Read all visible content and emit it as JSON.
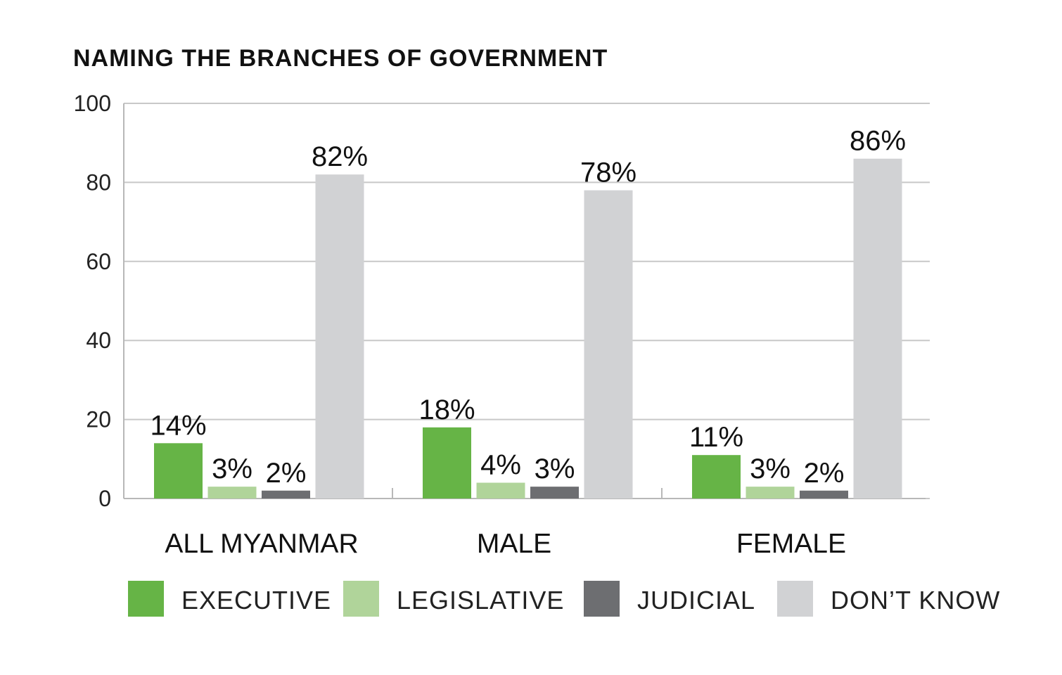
{
  "chart_data": {
    "type": "bar",
    "title": "NAMING THE BRANCHES OF GOVERNMENT",
    "categories": [
      "ALL MYANMAR",
      "MALE",
      "FEMALE"
    ],
    "series": [
      {
        "name": "EXECUTIVE",
        "color": "#66b446",
        "values": [
          14,
          18,
          11
        ],
        "labels": [
          "14%",
          "18%",
          "11%"
        ]
      },
      {
        "name": "LEGISLATIVE",
        "color": "#b0d49a",
        "values": [
          3,
          4,
          3
        ],
        "labels": [
          "3%",
          "4%",
          "3%"
        ]
      },
      {
        "name": "JUDICIAL",
        "color": "#6d6e71",
        "values": [
          2,
          3,
          2
        ],
        "labels": [
          "2%",
          "3%",
          "2%"
        ]
      },
      {
        "name": "DON’T KNOW",
        "color": "#d1d2d4",
        "values": [
          82,
          78,
          86
        ],
        "labels": [
          "82%",
          "78%",
          "86%"
        ]
      }
    ],
    "yticks": [
      0,
      20,
      40,
      60,
      80,
      100
    ],
    "ylim": [
      0,
      100
    ],
    "grid": true,
    "legend_position": "bottom"
  }
}
